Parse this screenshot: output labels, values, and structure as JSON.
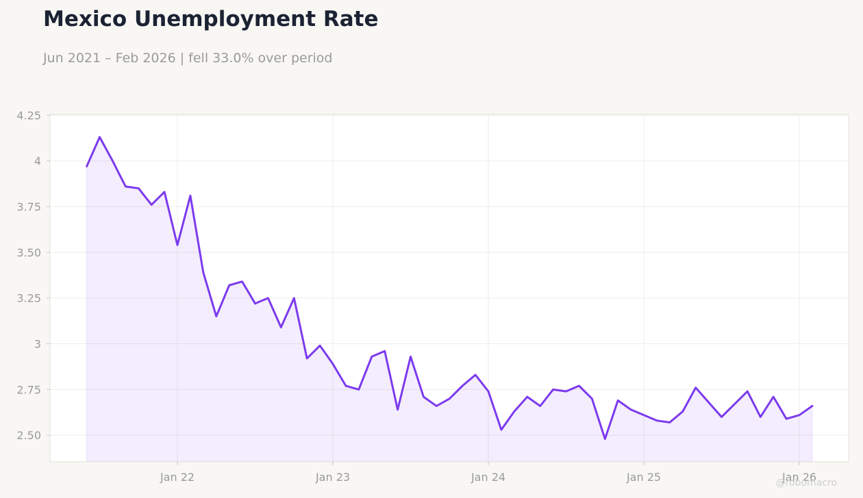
{
  "chart_data": {
    "type": "area",
    "title": "Mexico Unemployment Rate",
    "subtitle": "Jun 2021 – Feb 2026 | fell 33.0% over period",
    "xlabel": "",
    "ylabel": "",
    "ylim": [
      2.355,
      4.255
    ],
    "y_ticks": [
      4.25,
      4.0,
      3.75,
      3.5,
      3.25,
      3.0,
      2.75,
      2.5
    ],
    "y_tick_labels": [
      "4.25",
      "4",
      "3.75",
      "3.50",
      "3.25",
      "3",
      "2.75",
      "2.50"
    ],
    "x_ticks": [
      "2022-01",
      "2023-01",
      "2024-01",
      "2025-01",
      "2026-01"
    ],
    "x_tick_labels": [
      "Jan 22",
      "Jan 23",
      "Jan 24",
      "Jan 25",
      "Jan 26"
    ],
    "grid": true,
    "colors": {
      "line": "#7c3aed",
      "fill": "#7c3aed"
    },
    "x": [
      "2021-06",
      "2021-07",
      "2021-08",
      "2021-09",
      "2021-10",
      "2021-11",
      "2021-12",
      "2022-01",
      "2022-02",
      "2022-03",
      "2022-04",
      "2022-05",
      "2022-06",
      "2022-07",
      "2022-08",
      "2022-09",
      "2022-10",
      "2022-11",
      "2022-12",
      "2023-01",
      "2023-02",
      "2023-03",
      "2023-04",
      "2023-05",
      "2023-06",
      "2023-07",
      "2023-08",
      "2023-09",
      "2023-10",
      "2023-11",
      "2023-12",
      "2024-01",
      "2024-02",
      "2024-03",
      "2024-04",
      "2024-05",
      "2024-06",
      "2024-07",
      "2024-08",
      "2024-09",
      "2024-10",
      "2024-11",
      "2024-12",
      "2025-01",
      "2025-02",
      "2025-03",
      "2025-04",
      "2025-05",
      "2025-06",
      "2025-07",
      "2025-08",
      "2025-09",
      "2025-10",
      "2025-11",
      "2025-12",
      "2026-01",
      "2026-02"
    ],
    "values": [
      3.97,
      4.13,
      4.0,
      3.86,
      3.85,
      3.76,
      3.83,
      3.54,
      3.81,
      3.39,
      3.15,
      3.32,
      3.34,
      3.22,
      3.25,
      3.09,
      3.25,
      2.92,
      2.99,
      2.89,
      2.77,
      2.75,
      2.93,
      2.96,
      2.64,
      2.93,
      2.71,
      2.66,
      2.7,
      2.77,
      2.83,
      2.74,
      2.53,
      2.63,
      2.71,
      2.66,
      2.75,
      2.74,
      2.77,
      2.7,
      2.48,
      2.69,
      2.64,
      2.61,
      2.58,
      2.57,
      2.63,
      2.76,
      2.68,
      2.6,
      2.67,
      2.74,
      2.6,
      2.71,
      2.59,
      2.61,
      2.66
    ]
  },
  "watermark": "@robomacro"
}
